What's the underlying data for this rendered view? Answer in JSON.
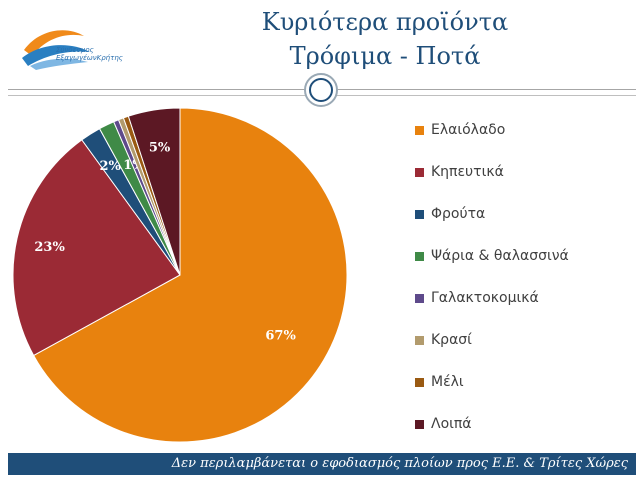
{
  "slide": {
    "title_line1": "Κυριότερα προϊόντα",
    "title_line2": "Τρόφιμα - Ποτά",
    "logo_text_line1": "Σύνδεσμος",
    "logo_text_line2": "ΕξαγωγέωνΚρήτης",
    "footer_note": "Δεν περιλαμβάνεται ο εφοδιασμός πλοίων προς Ε.Ε. & Τρίτες Χώρες"
  },
  "colors": {
    "title": "#1f4e79",
    "footer_bg": "#1f4e79",
    "pie_outline": "#ffffff"
  },
  "chart_data": {
    "type": "pie",
    "title": "",
    "start_angle_deg": 0,
    "direction": "clockwise",
    "legend_position": "right",
    "slices": [
      {
        "name": "Ελαιόλαδο",
        "value": 67,
        "label": "67%",
        "color": "#e8820e"
      },
      {
        "name": "Κηπευτικά",
        "value": 23,
        "label": "23%",
        "color": "#9b2a35"
      },
      {
        "name": "Φρούτα",
        "value": 2,
        "label": "2%",
        "color": "#1f4e79"
      },
      {
        "name": "Ψάρια & θαλασσινά",
        "value": 1.5,
        "label": "",
        "color": "#3f8a47"
      },
      {
        "name": "Γαλακτοκομικά",
        "value": 0.5,
        "label": "1%",
        "color": "#5e4a8b"
      },
      {
        "name": "Κρασί",
        "value": 0.5,
        "label": "",
        "color": "#b29b6d"
      },
      {
        "name": "Μέλι",
        "value": 0.5,
        "label": "",
        "color": "#9a5a12"
      },
      {
        "name": "Λοιπά",
        "value": 5,
        "label": "5%",
        "color": "#5c1824"
      }
    ]
  }
}
